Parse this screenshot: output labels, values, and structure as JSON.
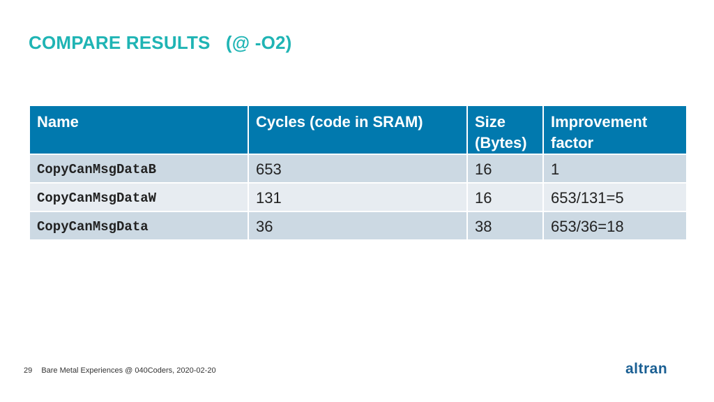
{
  "slide": {
    "title": "COMPARE RESULTS   (@ -O2)"
  },
  "table": {
    "headers": [
      "Name",
      "Cycles (code in SRAM)",
      "Size (Bytes)",
      "Improvement factor"
    ],
    "rows": [
      [
        "CopyCanMsgDataB",
        "653",
        "16",
        "1"
      ],
      [
        "CopyCanMsgDataW",
        "131",
        "16",
        "653/131=5"
      ],
      [
        "CopyCanMsgData",
        "36",
        "38",
        "653/36=18"
      ]
    ]
  },
  "footer": {
    "page_number": "29",
    "text": "Bare Metal Experiences @ 040Coders, 2020-02-20"
  },
  "logo": {
    "text": "altran",
    "color": "#1a5f93"
  },
  "colors": {
    "title": "#1fb4b4",
    "header_bg": "#0179ae",
    "row_dark": "#ccd9e3",
    "row_light": "#e7ecf1"
  }
}
